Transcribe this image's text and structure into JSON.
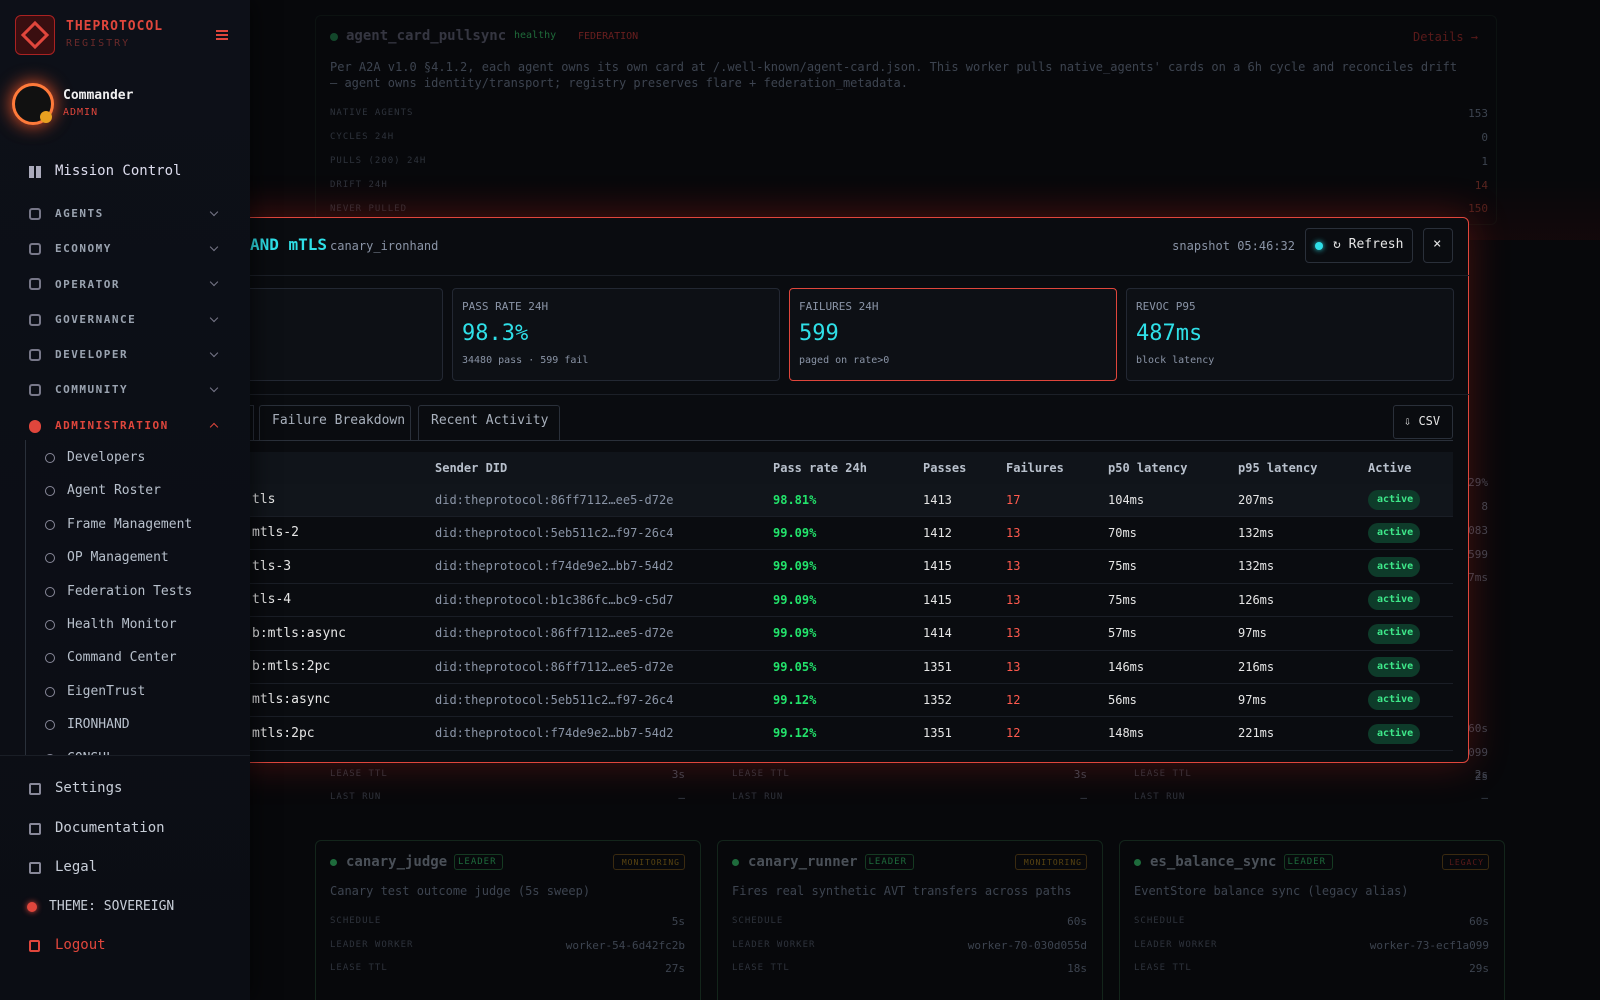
{
  "sidebar": {
    "brand": "THEPROTOCOL",
    "brand_sub": "REGISTRY",
    "user": {
      "name": "Commander",
      "role": "ADMIN"
    },
    "top_item": "Mission Control",
    "sections": [
      "AGENTS",
      "ECONOMY",
      "OPERATOR",
      "GOVERNANCE",
      "DEVELOPER",
      "COMMUNITY"
    ],
    "active_section": "ADMINISTRATION",
    "sub_items": [
      "Developers",
      "Agent Roster",
      "Frame Management",
      "OP Management",
      "Federation Tests",
      "Health Monitor",
      "Command Center",
      "EigenTrust",
      "IRONHAND",
      "CONSUL"
    ],
    "footer_items": [
      "Settings",
      "Documentation",
      "Legal"
    ],
    "theme": "THEME: SOVEREIGN",
    "logout": "Logout"
  },
  "background": {
    "top_card": {
      "name": "agent_card_pullsync",
      "status": "healthy",
      "tag": "FEDERATION",
      "link": "Details →",
      "description": "Per A2A v1.0 §4.1.2, each agent owns its own card at /.well-known/agent-card.json. This worker pulls native_agents' cards on a 6h cycle and reconciles drift — agent owns identity/transport; registry preserves flare + federation_metadata.",
      "rows": [
        [
          "NATIVE AGENTS",
          "153"
        ],
        [
          "CYCLES 24H",
          "0"
        ],
        [
          "PULLS (200) 24H",
          "1"
        ],
        [
          "DRIFT 24H",
          "14"
        ],
        [
          "NEVER PULLED",
          "150"
        ]
      ]
    },
    "fragments": [
      "29%",
      "8",
      "083",
      "599",
      "7ms",
      "60s",
      "099",
      "2s"
    ],
    "mid_cards": [
      {
        "labels": [
          "LEASE TTL",
          "LAST RUN"
        ],
        "values": [
          "3s",
          "—"
        ]
      },
      {
        "labels": [
          "LEASE TTL",
          "LAST RUN"
        ],
        "values": [
          "3s",
          "—"
        ]
      },
      {
        "labels": [
          "LEASE TTL",
          "LAST RUN"
        ],
        "values": [
          "2s",
          "—"
        ]
      }
    ],
    "cards": [
      {
        "name": "canary_judge",
        "badge": "LEADER",
        "status": "MONITORING",
        "description": "Canary test outcome judge (5s sweep)",
        "rows": [
          [
            "SCHEDULE",
            "5s"
          ],
          [
            "LEADER WORKER",
            "worker-54-6d42fc2b"
          ],
          [
            "LEASE TTL",
            "27s"
          ]
        ]
      },
      {
        "name": "canary_runner",
        "badge": "LEADER",
        "status": "MONITORING",
        "description": "Fires real synthetic AVT transfers across paths",
        "rows": [
          [
            "SCHEDULE",
            "60s"
          ],
          [
            "LEADER WORKER",
            "worker-70-030d055d"
          ],
          [
            "LEASE TTL",
            "18s"
          ]
        ]
      },
      {
        "name": "es_balance_sync",
        "badge": "LEADER",
        "status": "LEGACY",
        "description": "EventStore balance sync (legacy alias)",
        "rows": [
          [
            "SCHEDULE",
            "60s"
          ],
          [
            "LEADER WORKER",
            "worker-73-ecf1a099"
          ],
          [
            "LEASE TTL",
            "29s"
          ]
        ]
      }
    ]
  },
  "modal": {
    "title": "AND mTLS",
    "subtitle": "canary_ironhand",
    "snapshot": "snapshot 05:46:32",
    "refresh": "↻ Refresh",
    "close": "×",
    "stats": [
      {
        "label": "PASS RATE 24H",
        "value": "98.3%",
        "sub": "34480 pass · 599 fail"
      },
      {
        "label": "FAILURES 24H",
        "value": "599",
        "sub": "paged on rate>0"
      },
      {
        "label": "REVOC P95",
        "value": "487ms",
        "sub": "block latency"
      }
    ],
    "tabs": [
      "Failure Breakdown",
      "Recent Activity"
    ],
    "csv": "⇩ CSV",
    "table": {
      "columns": [
        "Sender DID",
        "Pass rate 24h",
        "Passes",
        "Failures",
        "p50 latency",
        "p95 latency",
        "Active"
      ],
      "rows": [
        [
          "tls",
          "did:theprotocol:86ff7112…ee5-d72e",
          "98.81%",
          "1413",
          "17",
          "104ms",
          "207ms",
          "active"
        ],
        [
          "mtls-2",
          "did:theprotocol:5eb511c2…f97-26c4",
          "99.09%",
          "1412",
          "13",
          "70ms",
          "132ms",
          "active"
        ],
        [
          "tls-3",
          "did:theprotocol:f74de9e2…bb7-54d2",
          "99.09%",
          "1415",
          "13",
          "75ms",
          "132ms",
          "active"
        ],
        [
          "tls-4",
          "did:theprotocol:b1c386fc…bc9-c5d7",
          "99.09%",
          "1415",
          "13",
          "75ms",
          "126ms",
          "active"
        ],
        [
          "b:mtls:async",
          "did:theprotocol:86ff7112…ee5-d72e",
          "99.09%",
          "1414",
          "13",
          "57ms",
          "97ms",
          "active"
        ],
        [
          "b:mtls:2pc",
          "did:theprotocol:86ff7112…ee5-d72e",
          "99.05%",
          "1351",
          "13",
          "146ms",
          "216ms",
          "active"
        ],
        [
          "mtls:async",
          "did:theprotocol:5eb511c2…f97-26c4",
          "99.12%",
          "1352",
          "12",
          "56ms",
          "97ms",
          "active"
        ],
        [
          "mtls:2pc",
          "did:theprotocol:f74de9e2…bb7-54d2",
          "99.12%",
          "1351",
          "12",
          "148ms",
          "221ms",
          "active"
        ]
      ]
    }
  }
}
